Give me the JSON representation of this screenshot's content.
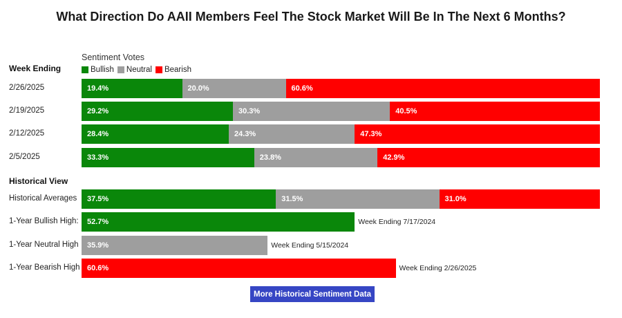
{
  "title": "What Direction Do AAII Members Feel The Stock Market Will Be In The Next 6 Months?",
  "colors": {
    "bullish": "#0a870a",
    "neutral": "#9e9e9e",
    "bearish": "#ff0000",
    "button": "#3646c4"
  },
  "legend": {
    "title": "Sentiment Votes",
    "items": [
      {
        "key": "bullish",
        "label": "Bullish"
      },
      {
        "key": "neutral",
        "label": "Neutral"
      },
      {
        "key": "bearish",
        "label": "Bearish"
      }
    ]
  },
  "sections": {
    "weekly": "Week Ending",
    "historical": "Historical View"
  },
  "button": {
    "label": "More Historical Sentiment Data"
  },
  "chart_data": [
    {
      "type": "bar",
      "stacked": true,
      "orientation": "horizontal",
      "categories": [
        "2/26/2025",
        "2/19/2025",
        "2/12/2025",
        "2/5/2025"
      ],
      "series": [
        {
          "name": "Bullish",
          "values": [
            19.4,
            29.2,
            28.4,
            33.3
          ],
          "labels": [
            "19.4%",
            "29.2%",
            "28.4%",
            "33.3%"
          ]
        },
        {
          "name": "Neutral",
          "values": [
            20.0,
            30.3,
            24.3,
            23.8
          ],
          "labels": [
            "20.0%",
            "30.3%",
            "24.3%",
            "23.8%"
          ]
        },
        {
          "name": "Bearish",
          "values": [
            60.6,
            40.5,
            47.3,
            42.9
          ],
          "labels": [
            "60.6%",
            "40.5%",
            "47.3%",
            "42.9%"
          ]
        }
      ],
      "xlim": [
        0,
        100
      ]
    },
    {
      "type": "bar",
      "stacked": true,
      "orientation": "horizontal",
      "categories": [
        "Historical Averages",
        "1-Year Bullish High:",
        "1-Year Neutral High",
        "1-Year Bearish High"
      ],
      "rows": [
        {
          "segments": [
            {
              "series": "bullish",
              "value": 37.5,
              "label": "37.5%"
            },
            {
              "series": "neutral",
              "value": 31.5,
              "label": "31.5%"
            },
            {
              "series": "bearish",
              "value": 31.0,
              "label": "31.0%"
            }
          ],
          "note": ""
        },
        {
          "segments": [
            {
              "series": "bullish",
              "value": 52.7,
              "label": "52.7%"
            }
          ],
          "note": "Week Ending 7/17/2024"
        },
        {
          "segments": [
            {
              "series": "neutral",
              "value": 35.9,
              "label": "35.9%"
            }
          ],
          "note": "Week Ending 5/15/2024"
        },
        {
          "segments": [
            {
              "series": "bearish",
              "value": 60.6,
              "label": "60.6%"
            }
          ],
          "note": "Week Ending 2/26/2025"
        }
      ],
      "xlim": [
        0,
        100
      ]
    }
  ]
}
